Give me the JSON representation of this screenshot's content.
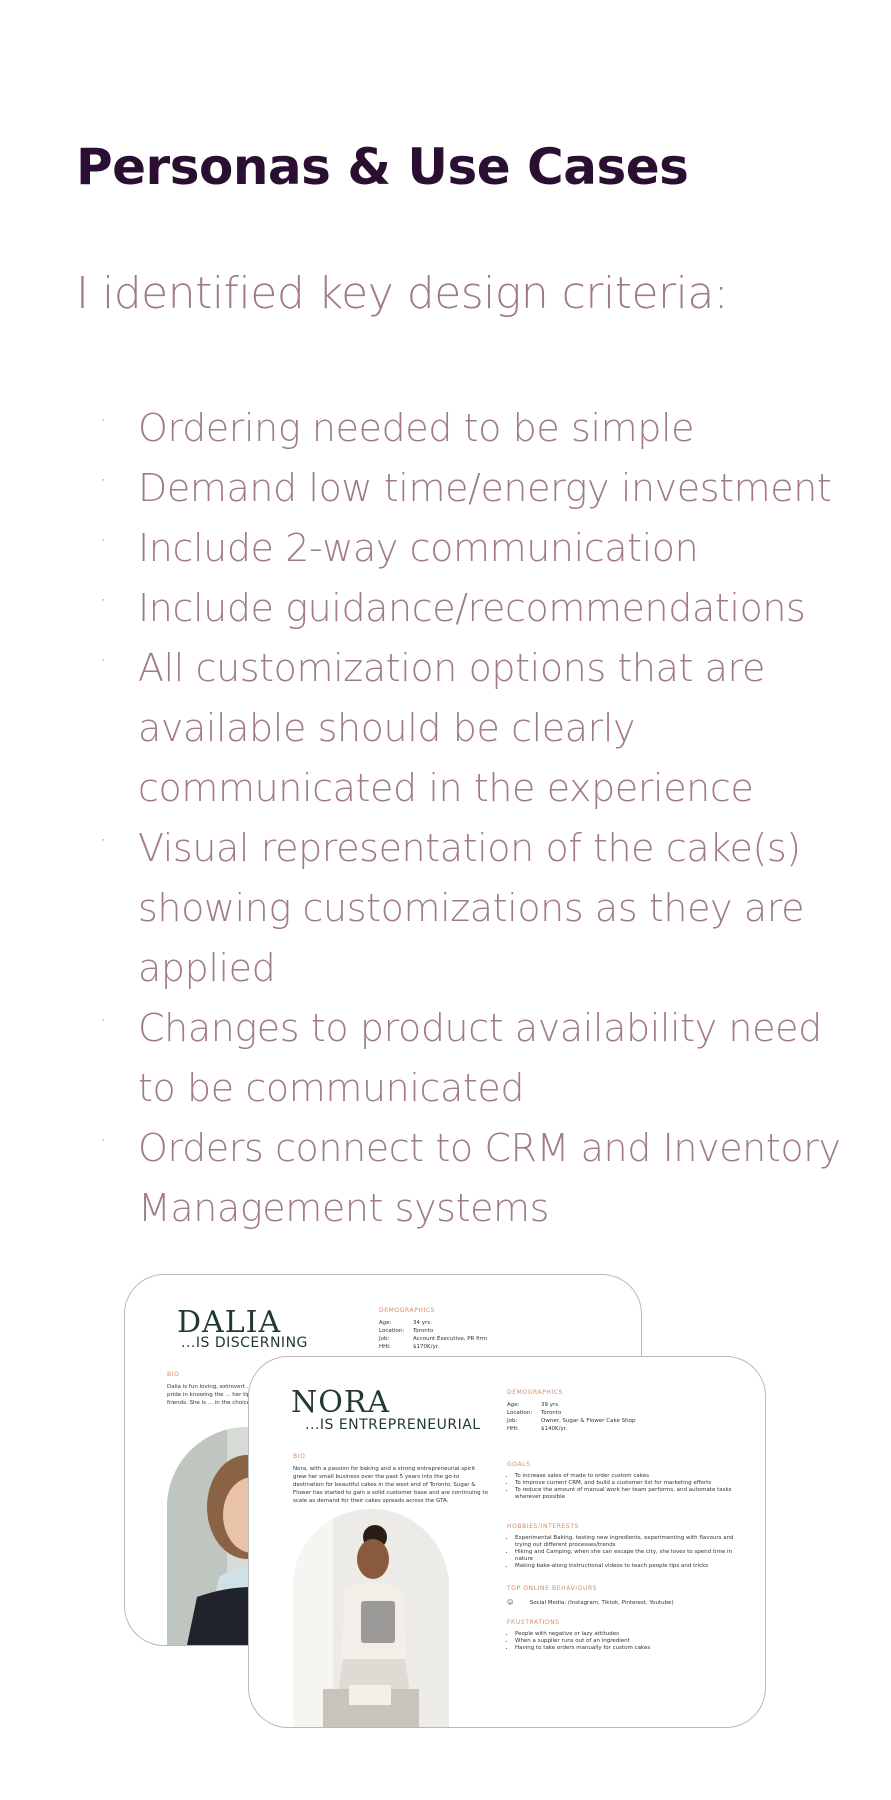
{
  "page": {
    "title": "Personas & Use Cases",
    "intro": "I identified key design criteria:"
  },
  "criteria": [
    "Ordering needed to be simple",
    "Demand low time/energy investment",
    "Include 2-way communication",
    "Include guidance/recommendations",
    "All customization options that are available should be clearly communicated in the experience",
    "Visual representation of the cake(s) showing customizations as they are applied",
    "Changes to product availability need to be communicated",
    "Orders connect to CRM and Inventory Management systems"
  ],
  "persona_dalia": {
    "name": "DALIA",
    "tagline": "...IS DISCERNING",
    "demographics_heading": "DEMOGRAPHICS",
    "age_label": "Age:",
    "age": "34 yrs.",
    "location_label": "Location:",
    "location": "Toronto",
    "job_label": "Job:",
    "job": "Account Executive, PR firm",
    "hhi_label": "HHI:",
    "hhi": "$170K/yr.",
    "bio_heading": "BIO",
    "bio": "Dalia is fun loving, extrovert ... She takes pride in knowing the ... her tips with friends. She is ... in the choices she makes."
  },
  "persona_nora": {
    "name": "NORA",
    "tagline": "...IS ENTREPRENEURIAL",
    "demographics_heading": "DEMOGRAPHICS",
    "age_label": "Age:",
    "age": "39 yrs.",
    "location_label": "Location:",
    "location": "Toronto",
    "job_label": "Job:",
    "job": "Owner, Sugar & Flower Cake Shop",
    "hhi_label": "HHI:",
    "hhi": "$140K/yr.",
    "bio_heading": "BIO",
    "bio": "Nora, with a passion for baking and a strong entrepreneurial spirit grew her small business over the past 5 years into the go-to destination for beautiful cakes in the west end of Toronto. Sugar & Flower has started to gain a solid customer base and are continuing to scale as demand for their cakes spreads across the GTA.",
    "goals_heading": "GOALS",
    "goals": [
      "To increase sales of made to order custom cakes",
      "To improve current CRM, and build a customer list for marketing efforts",
      "To reduce the amount of manual work her team performs, and automate tasks wherever possible"
    ],
    "hobbies_heading": "HOBBIES/INTERESTS",
    "hobbies": [
      "Experimental Baking, testing new ingredients, experimenting with flavours and trying out different processes/trends",
      "Hiking and Camping, when she can escape the city, she loves to spend time in nature",
      "Making bake-along instructional videos to teach people tips and tricks"
    ],
    "online_heading": "TOP ONLINE BEHAVIOURS",
    "online": "Social Media: (Instagram, Tiktok, Pinterest, Youtube)",
    "frustrations_heading": "FRUSTRATIONS",
    "frustrations": [
      "People with negative or lazy attitudes",
      "When a supplier runs out of an ingredient",
      "Having to take orders manually for custom cakes"
    ]
  },
  "colors": {
    "title": "#2b0f33",
    "body_text": "#a07a86",
    "persona_name": "#1f3a2f",
    "section_accent": "#d98c5f"
  }
}
